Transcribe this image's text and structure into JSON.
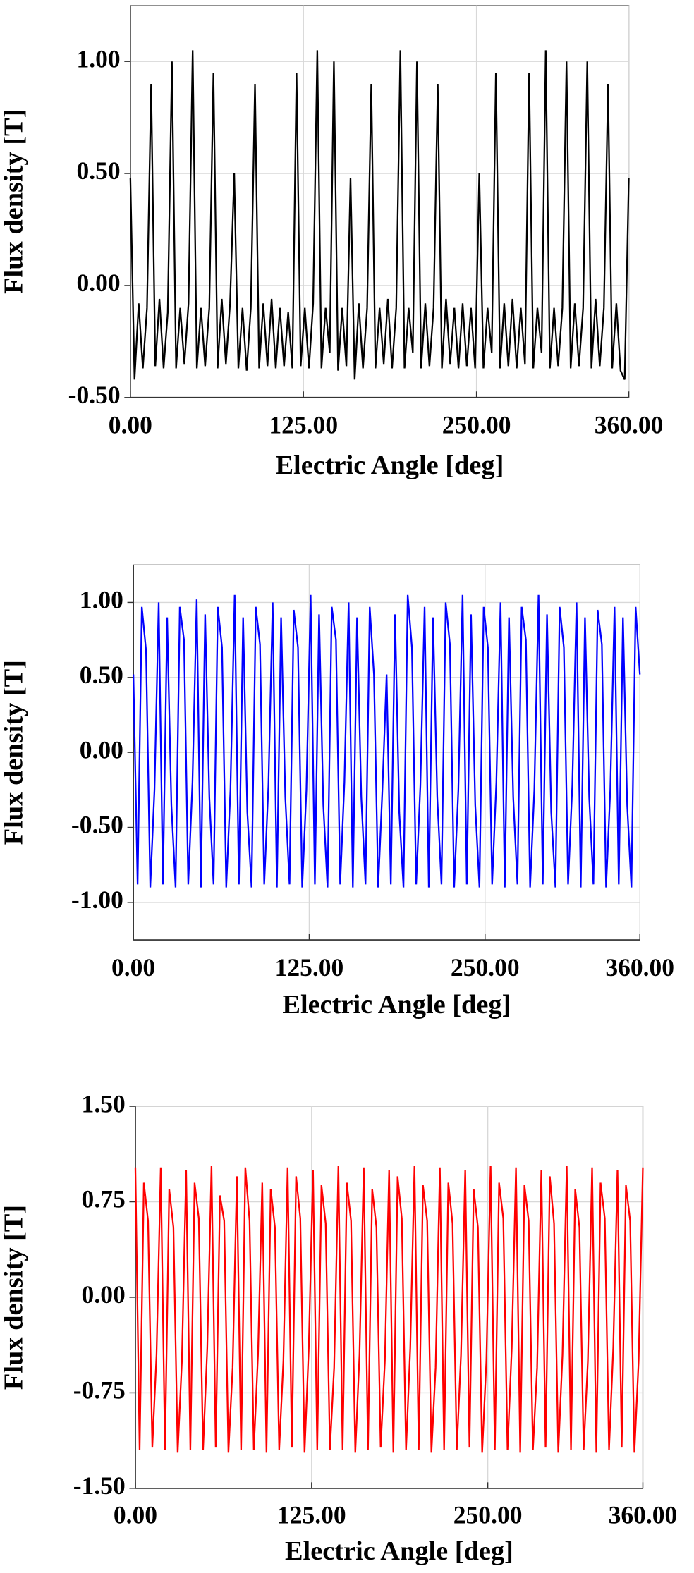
{
  "chart_data": [
    {
      "type": "line",
      "xlabel": "Electric Angle [deg]",
      "ylabel": "Flux density [T]",
      "color": "#000000",
      "grid": true,
      "xlim": [
        0,
        360
      ],
      "ylim": [
        -0.5,
        1.25
      ],
      "xticks": [
        {
          "value": 0,
          "label": "0.00"
        },
        {
          "value": 125,
          "label": "125.00"
        },
        {
          "value": 250,
          "label": "250.00"
        },
        {
          "value": 360,
          "label": "360.00"
        }
      ],
      "yticks": [
        {
          "value": -0.5,
          "label": "-0.50"
        },
        {
          "value": 0,
          "label": "0.00"
        },
        {
          "value": 0.5,
          "label": "0.50"
        },
        {
          "value": 1,
          "label": "1.00"
        }
      ],
      "x": [
        0,
        3,
        6,
        9,
        12,
        15,
        18,
        21,
        24,
        27,
        30,
        33,
        36,
        39,
        42,
        45,
        48,
        51,
        54,
        57,
        60,
        63,
        66,
        69,
        72,
        75,
        78,
        81,
        84,
        87,
        90,
        93,
        96,
        99,
        102,
        105,
        108,
        111,
        114,
        117,
        120,
        123,
        126,
        129,
        132,
        135,
        138,
        141,
        144,
        147,
        150,
        153,
        156,
        159,
        162,
        165,
        168,
        171,
        174,
        177,
        180,
        183,
        186,
        189,
        192,
        195,
        198,
        201,
        204,
        207,
        210,
        213,
        216,
        219,
        222,
        225,
        228,
        231,
        234,
        237,
        240,
        243,
        246,
        249,
        252,
        255,
        258,
        261,
        264,
        267,
        270,
        273,
        276,
        279,
        282,
        285,
        288,
        291,
        294,
        297,
        300,
        303,
        306,
        309,
        312,
        315,
        318,
        321,
        324,
        327,
        330,
        333,
        336,
        339,
        342,
        345,
        348,
        351,
        354,
        357,
        360
      ],
      "values": [
        0.48,
        -0.42,
        -0.08,
        -0.37,
        -0.1,
        0.9,
        -0.36,
        -0.06,
        -0.37,
        -0.12,
        1.0,
        -0.37,
        -0.1,
        -0.35,
        -0.08,
        1.05,
        -0.37,
        -0.1,
        -0.36,
        -0.1,
        0.95,
        -0.37,
        -0.06,
        -0.35,
        -0.08,
        0.5,
        -0.37,
        -0.1,
        -0.38,
        -0.1,
        0.9,
        -0.37,
        -0.08,
        -0.36,
        -0.06,
        -0.37,
        -0.1,
        -0.36,
        -0.12,
        -0.37,
        0.95,
        -0.36,
        -0.1,
        -0.37,
        -0.08,
        1.05,
        -0.37,
        -0.1,
        -0.3,
        1.0,
        -0.38,
        -0.1,
        -0.36,
        0.48,
        -0.42,
        -0.08,
        -0.37,
        -0.1,
        0.9,
        -0.37,
        -0.1,
        -0.35,
        -0.06,
        -0.37,
        -0.1,
        1.05,
        -0.37,
        -0.1,
        -0.3,
        1.0,
        -0.37,
        -0.08,
        -0.36,
        -0.1,
        0.9,
        -0.37,
        -0.06,
        -0.35,
        -0.1,
        -0.37,
        -0.08,
        -0.36,
        -0.1,
        -0.37,
        0.5,
        -0.37,
        -0.1,
        -0.3,
        0.95,
        -0.37,
        -0.08,
        -0.36,
        -0.06,
        -0.37,
        -0.1,
        -0.35,
        0.95,
        -0.37,
        -0.1,
        -0.3,
        1.05,
        -0.37,
        -0.1,
        -0.36,
        -0.1,
        1.0,
        -0.37,
        -0.08,
        -0.36,
        -0.1,
        1.0,
        -0.37,
        -0.06,
        -0.36,
        -0.1,
        0.9,
        -0.37,
        -0.08,
        -0.38,
        -0.42,
        0.48
      ]
    },
    {
      "type": "line",
      "xlabel": "Electric Angle [deg]",
      "ylabel": "Flux density [T]",
      "color": "#0000ff",
      "grid": true,
      "xlim": [
        0,
        360
      ],
      "ylim": [
        -1.25,
        1.25
      ],
      "xticks": [
        {
          "value": 0,
          "label": "0.00"
        },
        {
          "value": 125,
          "label": "125.00"
        },
        {
          "value": 250,
          "label": "250.00"
        },
        {
          "value": 360,
          "label": "360.00"
        }
      ],
      "yticks": [
        {
          "value": -1,
          "label": "-1.00"
        },
        {
          "value": -0.5,
          "label": "-0.50"
        },
        {
          "value": 0,
          "label": "0.00"
        },
        {
          "value": 0.5,
          "label": "0.50"
        },
        {
          "value": 1,
          "label": "1.00"
        }
      ],
      "x": [
        0,
        3,
        6,
        9,
        12,
        15,
        18,
        21,
        24,
        27,
        30,
        33,
        36,
        39,
        42,
        45,
        48,
        51,
        54,
        57,
        60,
        63,
        66,
        69,
        72,
        75,
        78,
        81,
        84,
        87,
        90,
        93,
        96,
        99,
        102,
        105,
        108,
        111,
        114,
        117,
        120,
        123,
        126,
        129,
        132,
        135,
        138,
        141,
        144,
        147,
        150,
        153,
        156,
        159,
        162,
        165,
        168,
        171,
        174,
        177,
        180,
        183,
        186,
        189,
        192,
        195,
        198,
        201,
        204,
        207,
        210,
        213,
        216,
        219,
        222,
        225,
        228,
        231,
        234,
        237,
        240,
        243,
        246,
        249,
        252,
        255,
        258,
        261,
        264,
        267,
        270,
        273,
        276,
        279,
        282,
        285,
        288,
        291,
        294,
        297,
        300,
        303,
        306,
        309,
        312,
        315,
        318,
        321,
        324,
        327,
        330,
        333,
        336,
        339,
        342,
        345,
        348,
        351,
        354,
        357,
        360
      ],
      "values": [
        0.52,
        -0.88,
        0.97,
        0.68,
        -0.9,
        -0.25,
        1.0,
        -0.88,
        0.9,
        -0.35,
        -0.9,
        0.97,
        0.75,
        -0.88,
        -0.2,
        1.02,
        -0.9,
        0.92,
        -0.3,
        -0.88,
        0.97,
        0.7,
        -0.9,
        -0.25,
        1.05,
        -0.88,
        0.9,
        -0.4,
        -0.9,
        0.97,
        0.72,
        -0.88,
        -0.22,
        1.0,
        -0.9,
        0.9,
        -0.3,
        -0.88,
        0.95,
        0.7,
        -0.9,
        -0.25,
        1.05,
        -0.88,
        0.92,
        -0.35,
        -0.9,
        0.97,
        0.75,
        -0.88,
        -0.2,
        1.0,
        -0.9,
        0.9,
        -0.3,
        -0.88,
        0.97,
        0.52,
        -0.9,
        -0.25,
        0.52,
        -0.88,
        0.92,
        -0.4,
        -0.9,
        1.05,
        0.7,
        -0.88,
        -0.22,
        0.97,
        -0.9,
        0.9,
        -0.3,
        -0.88,
        1.0,
        0.72,
        -0.9,
        -0.25,
        1.05,
        -0.88,
        0.92,
        -0.35,
        -0.9,
        0.97,
        0.7,
        -0.88,
        -0.2,
        1.0,
        -0.9,
        0.9,
        -0.3,
        -0.88,
        0.97,
        0.75,
        -0.9,
        -0.25,
        1.05,
        -0.88,
        0.92,
        -0.4,
        -0.9,
        0.97,
        0.7,
        -0.88,
        -0.22,
        1.0,
        -0.9,
        0.9,
        -0.3,
        -0.88,
        0.95,
        0.72,
        -0.9,
        -0.25,
        0.97,
        -0.88,
        0.9,
        -0.35,
        -0.9,
        0.97,
        0.52
      ]
    },
    {
      "type": "line",
      "xlabel": "Electric Angle [deg]",
      "ylabel": "Flux density [T]",
      "color": "#ff0000",
      "grid": true,
      "xlim": [
        0,
        360
      ],
      "ylim": [
        -1.5,
        1.5
      ],
      "xticks": [
        {
          "value": 0,
          "label": "0.00"
        },
        {
          "value": 125,
          "label": "125.00"
        },
        {
          "value": 250,
          "label": "250.00"
        },
        {
          "value": 360,
          "label": "360.00"
        }
      ],
      "yticks": [
        {
          "value": -1.5,
          "label": "-1.50"
        },
        {
          "value": -0.75,
          "label": "-0.75"
        },
        {
          "value": 0,
          "label": "0.00"
        },
        {
          "value": 0.75,
          "label": "0.75"
        },
        {
          "value": 1.5,
          "label": "1.50"
        }
      ],
      "x": [
        0,
        3,
        6,
        9,
        12,
        15,
        18,
        21,
        24,
        27,
        30,
        33,
        36,
        39,
        42,
        45,
        48,
        51,
        54,
        57,
        60,
        63,
        66,
        69,
        72,
        75,
        78,
        81,
        84,
        87,
        90,
        93,
        96,
        99,
        102,
        105,
        108,
        111,
        114,
        117,
        120,
        123,
        126,
        129,
        132,
        135,
        138,
        141,
        144,
        147,
        150,
        153,
        156,
        159,
        162,
        165,
        168,
        171,
        174,
        177,
        180,
        183,
        186,
        189,
        192,
        195,
        198,
        201,
        204,
        207,
        210,
        213,
        216,
        219,
        222,
        225,
        228,
        231,
        234,
        237,
        240,
        243,
        246,
        249,
        252,
        255,
        258,
        261,
        264,
        267,
        270,
        273,
        276,
        279,
        282,
        285,
        288,
        291,
        294,
        297,
        300,
        303,
        306,
        309,
        312,
        315,
        318,
        321,
        324,
        327,
        330,
        333,
        336,
        339,
        342,
        345,
        348,
        351,
        354,
        357,
        360
      ],
      "values": [
        1.02,
        -1.2,
        0.9,
        0.6,
        -1.18,
        -0.45,
        1.02,
        -1.2,
        0.85,
        0.55,
        -1.22,
        -0.5,
        1.0,
        -1.2,
        0.9,
        0.62,
        -1.2,
        -0.4,
        1.03,
        -1.18,
        0.8,
        0.6,
        -1.22,
        -0.55,
        0.95,
        -1.2,
        1.02,
        0.6,
        -1.2,
        -0.45,
        0.9,
        -1.22,
        0.85,
        0.55,
        -1.2,
        -0.5,
        1.02,
        -1.18,
        0.95,
        0.62,
        -1.22,
        -0.4,
        1.0,
        -1.2,
        0.88,
        0.58,
        -1.2,
        -0.55,
        1.03,
        -1.2,
        0.9,
        0.6,
        -1.22,
        -0.45,
        1.02,
        -1.2,
        0.85,
        0.55,
        -1.18,
        -0.5,
        1.0,
        -1.22,
        0.95,
        0.62,
        -1.2,
        -0.4,
        1.03,
        -1.2,
        0.88,
        0.6,
        -1.22,
        -0.55,
        1.02,
        -1.2,
        0.9,
        0.58,
        -1.2,
        -0.45,
        1.0,
        -1.18,
        0.85,
        0.55,
        -1.22,
        -0.5,
        1.03,
        -1.2,
        0.9,
        0.62,
        -1.2,
        -0.4,
        1.02,
        -1.22,
        0.88,
        0.6,
        -1.2,
        -0.55,
        1.0,
        -1.18,
        0.95,
        0.58,
        -1.22,
        -0.45,
        1.03,
        -1.2,
        0.85,
        0.55,
        -1.2,
        -0.5,
        1.02,
        -1.22,
        0.9,
        0.62,
        -1.2,
        -0.4,
        1.0,
        -1.18,
        0.88,
        0.6,
        -1.22,
        -0.5,
        1.02
      ]
    }
  ]
}
